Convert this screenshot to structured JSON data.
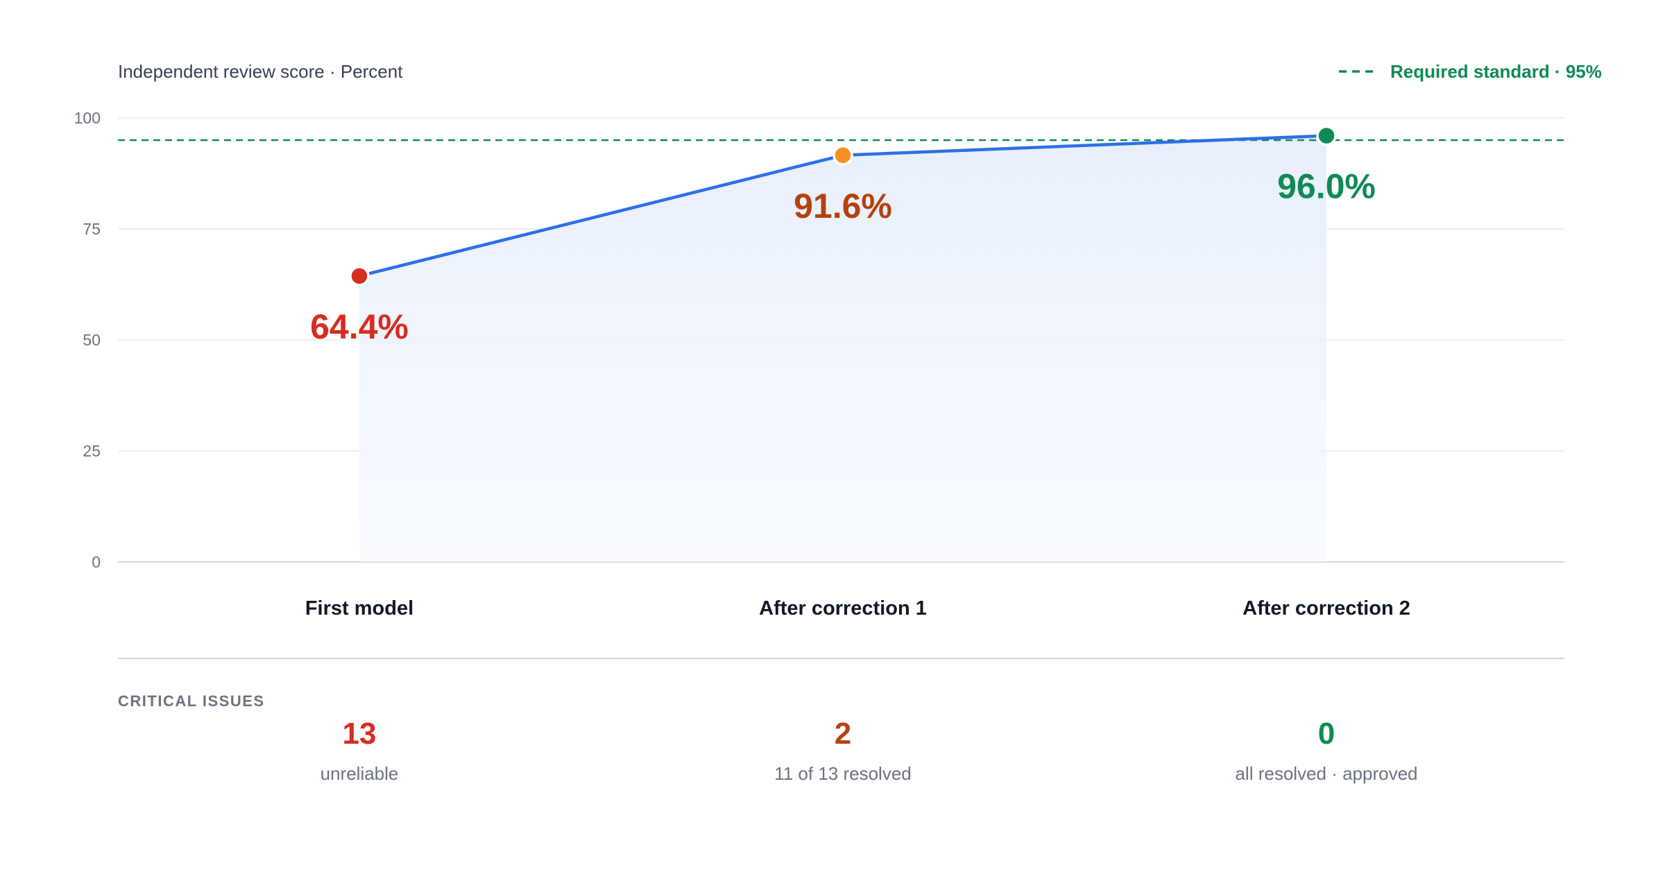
{
  "chart_data": {
    "type": "line",
    "title": "Independent review score · Percent",
    "xlabel": "",
    "ylabel": "",
    "ylim": [
      0,
      100
    ],
    "yticks": [
      0,
      25,
      50,
      75,
      100
    ],
    "grid": true,
    "categories": [
      "First model",
      "After correction 1",
      "After correction 2"
    ],
    "series": [
      {
        "values": [
          64.4,
          91.6,
          96.0
        ],
        "labels": [
          "64.4%",
          "91.6%",
          "96.0%"
        ],
        "color": "#2d6fe6",
        "area_fill": "#e8f0fc"
      }
    ],
    "point_colors": [
      "#d62d20",
      "#f5901e",
      "#0f8a55"
    ],
    "label_colors": [
      "#d62d20",
      "#b3420e",
      "#0f8a55"
    ],
    "reference_line": {
      "value": 95,
      "label": "Required standard · 95%",
      "color": "#0f8a55",
      "style": "dashed",
      "legend_position": "top-right"
    }
  },
  "critical_issues": {
    "heading": "CRITICAL ISSUES",
    "items": [
      {
        "count": "13",
        "note": "unreliable",
        "color": "#d62d20"
      },
      {
        "count": "2",
        "note": "11 of 13 resolved",
        "color": "#b3420e"
      },
      {
        "count": "0",
        "note": "all resolved · approved",
        "color": "#0f8a55"
      }
    ]
  }
}
